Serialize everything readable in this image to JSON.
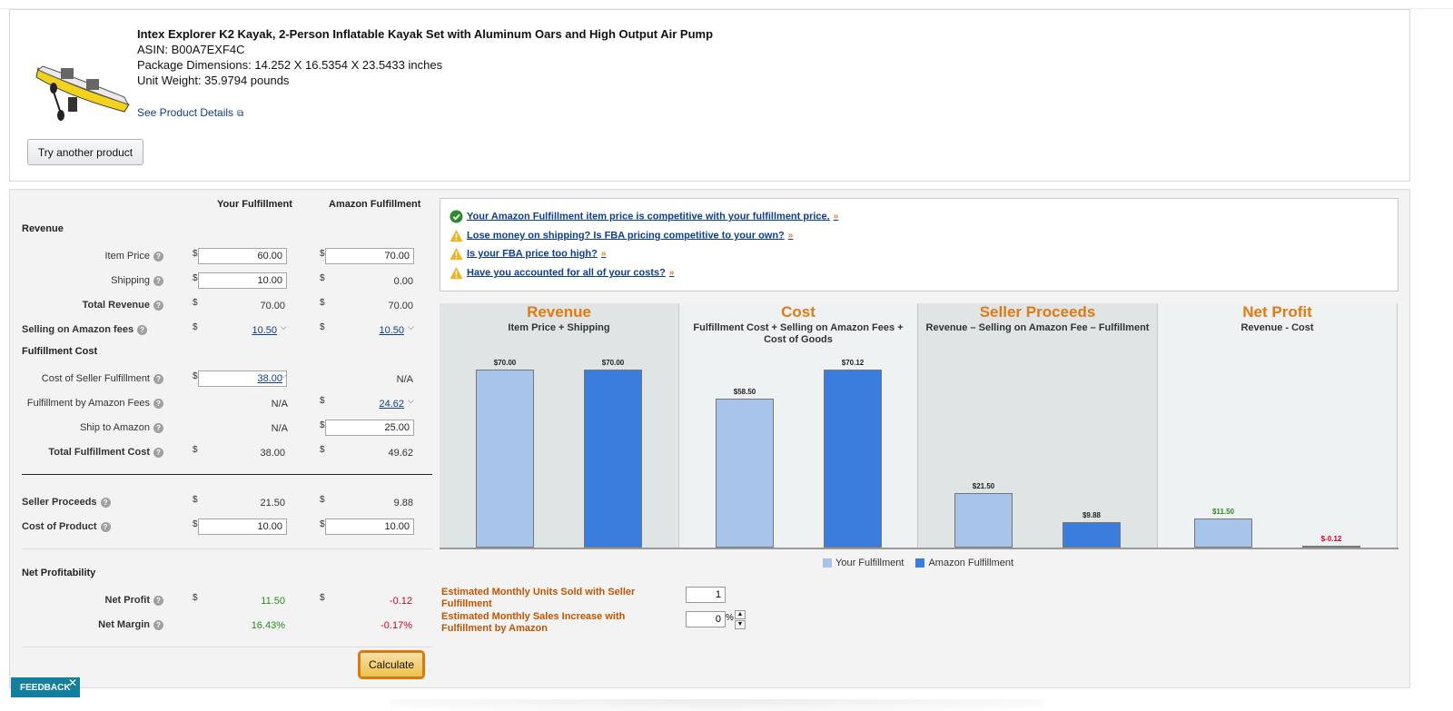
{
  "product": {
    "title": "Intex Explorer K2 Kayak, 2-Person Inflatable Kayak Set with Aluminum Oars and High Output Air Pump",
    "asin": "ASIN: B00A7EXF4C",
    "dimensions": "Package Dimensions: 14.252 X 16.5354 X 23.5433 inches",
    "weight": "Unit Weight: 35.9794 pounds",
    "see_details": "See Product Details",
    "try_another": "Try another product"
  },
  "columns": {
    "your": "Your Fulfillment",
    "amazon": "Amazon Fulfillment"
  },
  "sections": {
    "revenue": "Revenue",
    "fulfillment_cost": "Fulfillment Cost",
    "net_profitability": "Net Profitability"
  },
  "rows": {
    "item_price": {
      "label": "Item Price",
      "your": "60.00",
      "amazon": "70.00"
    },
    "shipping": {
      "label": "Shipping",
      "your": "10.00",
      "amazon": "0.00"
    },
    "total_revenue": {
      "label": "Total Revenue",
      "your": "70.00",
      "amazon": "70.00"
    },
    "selling_fees": {
      "label": "Selling on Amazon fees",
      "your": "10.50",
      "amazon": "10.50"
    },
    "seller_fulfillment": {
      "label": "Cost of Seller Fulfillment",
      "your": "38.00",
      "amazon": "N/A"
    },
    "fba_fees": {
      "label": "Fulfillment by Amazon Fees",
      "your": "N/A",
      "amazon": "24.62"
    },
    "ship_to_amazon": {
      "label": "Ship to Amazon",
      "your": "N/A",
      "amazon": "25.00"
    },
    "total_fulfillment": {
      "label": "Total Fulfillment Cost",
      "your": "38.00",
      "amazon": "49.62"
    },
    "seller_proceeds": {
      "label": "Seller Proceeds",
      "your": "21.50",
      "amazon": "9.88"
    },
    "cost_of_product": {
      "label": "Cost of Product",
      "your": "10.00",
      "amazon": "10.00"
    },
    "net_profit": {
      "label": "Net Profit",
      "your": "11.50",
      "amazon": "-0.12"
    },
    "net_margin": {
      "label": "Net Margin",
      "your": "16.43%",
      "amazon": "-0.17%"
    }
  },
  "currency_symbol": "$",
  "calculate": "Calculate",
  "messages": [
    {
      "text": "Your Amazon Fulfillment item price is competitive with your fulfillment price.",
      "icon": "check-circle-icon"
    },
    {
      "text": "Lose money on shipping? Is FBA pricing competitive to your own?",
      "icon": "warning-icon"
    },
    {
      "text": "Is your FBA price too high?",
      "icon": "warning-icon"
    },
    {
      "text": "Have you accounted for all of your costs?",
      "icon": "warning-icon"
    }
  ],
  "chart_data": {
    "type": "bar",
    "categories": [
      "Revenue",
      "Cost",
      "Seller Proceeds",
      "Net Profit"
    ],
    "subtitles": [
      "Item Price + Shipping",
      "Fulfillment Cost + Selling on Amazon Fees + Cost of Goods",
      "Revenue – Selling on Amazon Fee – Fulfillment",
      "Revenue - Cost"
    ],
    "series": [
      {
        "name": "Your Fulfillment",
        "values": [
          70.0,
          58.5,
          21.5,
          11.5
        ],
        "labels": [
          "$70.00",
          "$58.50",
          "$21.50",
          "$11.50"
        ],
        "color": "#a9c4eb"
      },
      {
        "name": "Amazon Fulfillment",
        "values": [
          70.0,
          70.12,
          9.88,
          -0.12
        ],
        "labels": [
          "$70.00",
          "$70.12",
          "$9.88",
          "$-0.12"
        ],
        "color": "#3b7ddd"
      }
    ],
    "ylim": [
      0,
      75
    ],
    "legend": "bottom-center"
  },
  "estimates": {
    "units_label": "Estimated Monthly Units Sold with Seller Fulfillment",
    "units_value": "1",
    "increase_label": "Estimated Monthly Sales Increase with Fulfillment by Amazon",
    "increase_value": "0",
    "percent": "%"
  },
  "feedback": "FEEDBACK",
  "colors": {
    "accent": "#e47911",
    "link": "#0f3e8a",
    "positive": "#2a8a1f",
    "negative": "#d0021b"
  }
}
